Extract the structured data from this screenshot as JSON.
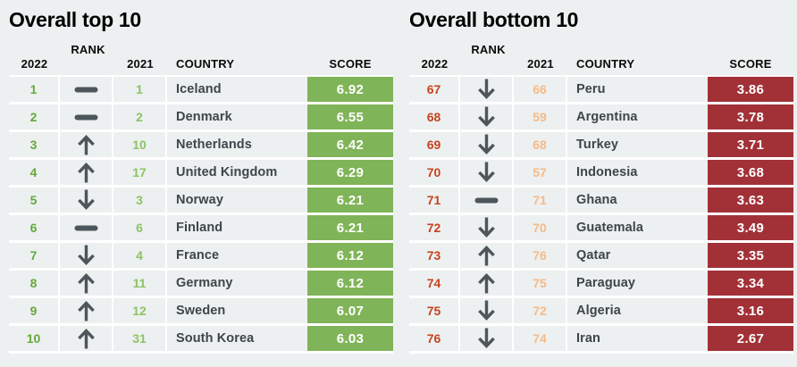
{
  "page": {
    "background": "#edf0f0",
    "grid_line_color": "#ffffff"
  },
  "icons": {
    "color": "#4d565b"
  },
  "tables": [
    {
      "title": "Overall top 10",
      "headers": {
        "rank": "RANK",
        "year_left": "2022",
        "year_right": "2021",
        "country": "COUNTRY",
        "score": "SCORE"
      },
      "accent": {
        "rank_2022_color": "#64a93c",
        "rank_2021_color": "#8cc363",
        "score_bg": "#80b458",
        "score_text": "#ffffff"
      },
      "rows": [
        {
          "rank_2022": "1",
          "change": "same",
          "rank_2021": "1",
          "country": "Iceland",
          "score": "6.92"
        },
        {
          "rank_2022": "2",
          "change": "same",
          "rank_2021": "2",
          "country": "Denmark",
          "score": "6.55"
        },
        {
          "rank_2022": "3",
          "change": "up",
          "rank_2021": "10",
          "country": "Netherlands",
          "score": "6.42"
        },
        {
          "rank_2022": "4",
          "change": "up",
          "rank_2021": "17",
          "country": "United Kingdom",
          "score": "6.29"
        },
        {
          "rank_2022": "5",
          "change": "down",
          "rank_2021": "3",
          "country": "Norway",
          "score": "6.21"
        },
        {
          "rank_2022": "6",
          "change": "same",
          "rank_2021": "6",
          "country": "Finland",
          "score": "6.21"
        },
        {
          "rank_2022": "7",
          "change": "down",
          "rank_2021": "4",
          "country": "France",
          "score": "6.12"
        },
        {
          "rank_2022": "8",
          "change": "up",
          "rank_2021": "11",
          "country": "Germany",
          "score": "6.12"
        },
        {
          "rank_2022": "9",
          "change": "up",
          "rank_2021": "12",
          "country": "Sweden",
          "score": "6.07"
        },
        {
          "rank_2022": "10",
          "change": "up",
          "rank_2021": "31",
          "country": "South Korea",
          "score": "6.03"
        }
      ]
    },
    {
      "title": "Overall bottom 10",
      "headers": {
        "rank": "RANK",
        "year_left": "2022",
        "year_right": "2021",
        "country": "COUNTRY",
        "score": "SCORE"
      },
      "accent": {
        "rank_2022_color": "#c6431f",
        "rank_2021_color": "#f6ba88",
        "score_bg": "#a23137",
        "score_text": "#ffffff"
      },
      "rows": [
        {
          "rank_2022": "67",
          "change": "down",
          "rank_2021": "66",
          "country": "Peru",
          "score": "3.86"
        },
        {
          "rank_2022": "68",
          "change": "down",
          "rank_2021": "59",
          "country": "Argentina",
          "score": "3.78"
        },
        {
          "rank_2022": "69",
          "change": "down",
          "rank_2021": "68",
          "country": "Turkey",
          "score": "3.71"
        },
        {
          "rank_2022": "70",
          "change": "down",
          "rank_2021": "57",
          "country": "Indonesia",
          "score": "3.68"
        },
        {
          "rank_2022": "71",
          "change": "same",
          "rank_2021": "71",
          "country": "Ghana",
          "score": "3.63"
        },
        {
          "rank_2022": "72",
          "change": "down",
          "rank_2021": "70",
          "country": "Guatemala",
          "score": "3.49"
        },
        {
          "rank_2022": "73",
          "change": "up",
          "rank_2021": "76",
          "country": "Qatar",
          "score": "3.35"
        },
        {
          "rank_2022": "74",
          "change": "up",
          "rank_2021": "75",
          "country": "Paraguay",
          "score": "3.34"
        },
        {
          "rank_2022": "75",
          "change": "down",
          "rank_2021": "72",
          "country": "Algeria",
          "score": "3.16"
        },
        {
          "rank_2022": "76",
          "change": "down",
          "rank_2021": "74",
          "country": "Iran",
          "score": "2.67"
        }
      ]
    }
  ],
  "chart_data": [
    {
      "type": "table",
      "title": "Overall top 10",
      "columns": [
        "2022 rank",
        "rank change",
        "2021 rank",
        "country",
        "score"
      ],
      "rows": [
        [
          1,
          "same",
          1,
          "Iceland",
          6.92
        ],
        [
          2,
          "same",
          2,
          "Denmark",
          6.55
        ],
        [
          3,
          "up",
          10,
          "Netherlands",
          6.42
        ],
        [
          4,
          "up",
          17,
          "United Kingdom",
          6.29
        ],
        [
          5,
          "down",
          3,
          "Norway",
          6.21
        ],
        [
          6,
          "same",
          6,
          "Finland",
          6.21
        ],
        [
          7,
          "down",
          4,
          "France",
          6.12
        ],
        [
          8,
          "up",
          11,
          "Germany",
          6.12
        ],
        [
          9,
          "up",
          12,
          "Sweden",
          6.07
        ],
        [
          10,
          "up",
          31,
          "South Korea",
          6.03
        ]
      ]
    },
    {
      "type": "table",
      "title": "Overall bottom 10",
      "columns": [
        "2022 rank",
        "rank change",
        "2021 rank",
        "country",
        "score"
      ],
      "rows": [
        [
          67,
          "down",
          66,
          "Peru",
          3.86
        ],
        [
          68,
          "down",
          59,
          "Argentina",
          3.78
        ],
        [
          69,
          "down",
          68,
          "Turkey",
          3.71
        ],
        [
          70,
          "down",
          57,
          "Indonesia",
          3.68
        ],
        [
          71,
          "same",
          71,
          "Ghana",
          3.63
        ],
        [
          72,
          "down",
          70,
          "Guatemala",
          3.49
        ],
        [
          73,
          "up",
          76,
          "Qatar",
          3.35
        ],
        [
          74,
          "up",
          75,
          "Paraguay",
          3.34
        ],
        [
          75,
          "down",
          72,
          "Algeria",
          3.16
        ],
        [
          76,
          "down",
          74,
          "Iran",
          2.67
        ]
      ]
    }
  ]
}
